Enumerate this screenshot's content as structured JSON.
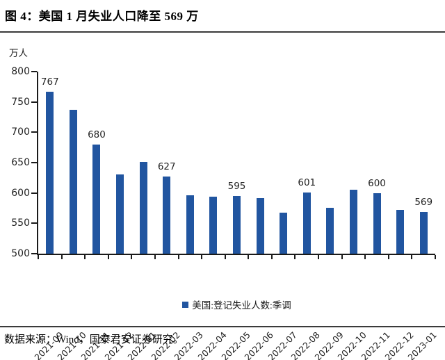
{
  "title": "图 4：美国 1 月失业人口降至 569 万",
  "source": "数据来源：Wind，国泰君安证券研究。",
  "legend": {
    "label": "美国:登记失业人数:季调"
  },
  "colors": {
    "bar": "#2155A0",
    "axis": "#1a1a1a",
    "divider": "#3a3a3a"
  },
  "chart_data": {
    "type": "bar",
    "title": "美国 1 月失业人口降至 569 万",
    "unit": "万人",
    "ylabel": "万人",
    "xlabel": "",
    "ylim": [
      500,
      800
    ],
    "ytick_step": 50,
    "grid": false,
    "legend_entries": [
      "美国:登记失业人数:季调"
    ],
    "legend_position": "bottom",
    "categories": [
      "2021-09",
      "2021-10",
      "2021-11",
      "2021-12",
      "2022-01",
      "2022-02",
      "2022-03",
      "2022-04",
      "2022-05",
      "2022-06",
      "2022-07",
      "2022-08",
      "2022-09",
      "2022-10",
      "2022-11",
      "2022-12",
      "2023-01"
    ],
    "values": [
      767,
      737,
      680,
      631,
      651,
      627,
      596,
      594,
      595,
      592,
      567,
      601,
      576,
      605,
      600,
      572,
      569
    ],
    "data_labels": [
      767,
      null,
      680,
      null,
      null,
      627,
      null,
      null,
      595,
      null,
      null,
      601,
      null,
      null,
      600,
      null,
      569
    ]
  }
}
